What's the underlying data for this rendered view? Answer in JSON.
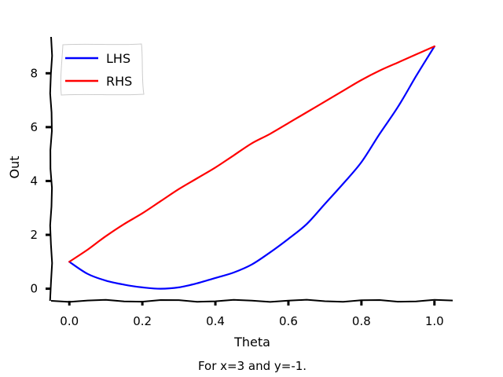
{
  "chart_data": {
    "type": "line",
    "title": "",
    "xlabel": "Theta",
    "ylabel": "Out",
    "caption": "For x=3 and y=-1.",
    "xlim": [
      -0.05,
      1.05
    ],
    "ylim": [
      -0.45,
      9.35
    ],
    "xticks": [
      0.0,
      0.2,
      0.4,
      0.6,
      0.8,
      1.0
    ],
    "xtick_labels": [
      "0.0",
      "0.2",
      "0.4",
      "0.6",
      "0.8",
      "1.0"
    ],
    "yticks": [
      0,
      2,
      4,
      6,
      8
    ],
    "ytick_labels": [
      "0",
      "2",
      "4",
      "6",
      "8"
    ],
    "grid": false,
    "legend_position": "top-left",
    "x": [
      0.0,
      0.05,
      0.1,
      0.15,
      0.2,
      0.25,
      0.3,
      0.35,
      0.4,
      0.45,
      0.5,
      0.55,
      0.6,
      0.65,
      0.7,
      0.75,
      0.8,
      0.85,
      0.9,
      0.95,
      1.0
    ],
    "series": [
      {
        "name": "LHS",
        "color": "#0000ff",
        "values": [
          1.0,
          0.55,
          0.3,
          0.15,
          0.05,
          0.0,
          0.05,
          0.2,
          0.4,
          0.6,
          0.9,
          1.35,
          1.85,
          2.4,
          3.15,
          3.9,
          4.7,
          5.75,
          6.75,
          7.9,
          9.0
        ]
      },
      {
        "name": "RHS",
        "color": "#ff0000",
        "values": [
          1.0,
          1.45,
          1.95,
          2.4,
          2.8,
          3.25,
          3.7,
          4.1,
          4.5,
          4.95,
          5.4,
          5.75,
          6.15,
          6.55,
          6.95,
          7.35,
          7.75,
          8.1,
          8.4,
          8.7,
          9.0
        ]
      }
    ]
  }
}
